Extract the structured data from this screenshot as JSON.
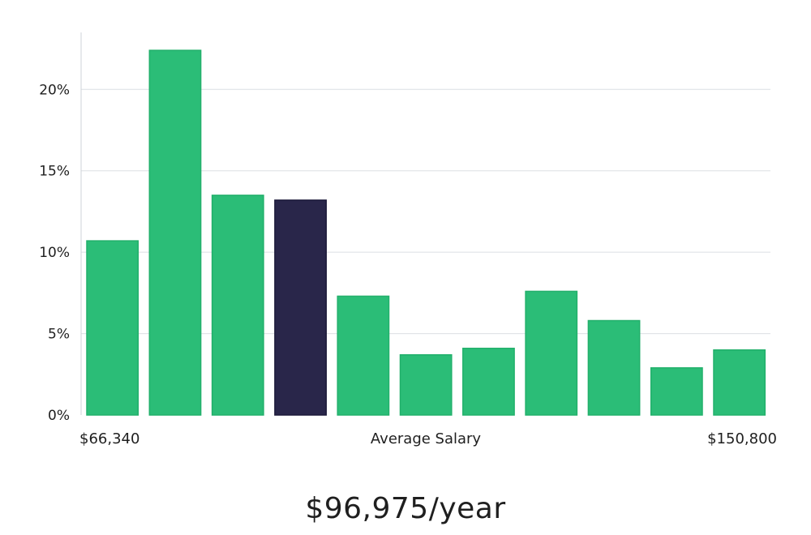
{
  "chart_data": {
    "type": "bar",
    "values": [
      10.7,
      22.4,
      13.5,
      13.2,
      7.3,
      3.7,
      4.1,
      7.6,
      5.8,
      2.9,
      4.0
    ],
    "highlight_index": 3,
    "ylim": [
      0,
      23.5
    ],
    "yticks": [
      {
        "value": 0,
        "label": "0%"
      },
      {
        "value": 5,
        "label": "5%"
      },
      {
        "value": 10,
        "label": "10%"
      },
      {
        "value": 15,
        "label": "15%"
      },
      {
        "value": 20,
        "label": "20%"
      }
    ],
    "x_min_label": "$66,340",
    "x_center_label": "Average Salary",
    "x_max_label": "$150,800",
    "grid": true,
    "legend": "none",
    "colors": {
      "bar": "#2bbd77",
      "bar_border": "#22b06b",
      "highlight": "#29264a",
      "highlight_border": "#1d1a3a",
      "grid": "#dcdfe3",
      "axis": "#cfd3d8"
    }
  },
  "summary": {
    "salary_text": "$96,975/year"
  }
}
